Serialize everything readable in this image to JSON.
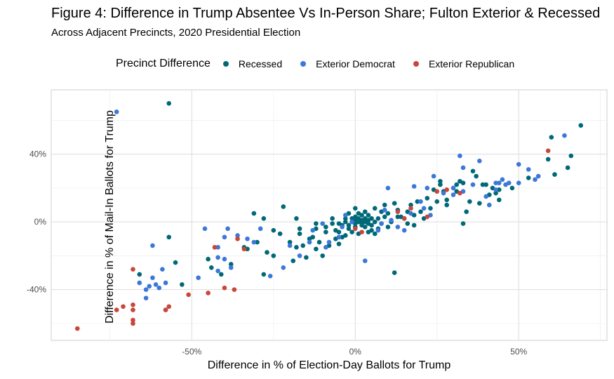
{
  "title": "Figure 4: Difference in Trump Absentee Vs In-Person Share; Fulton Exterior & Recessed",
  "subtitle": "Across Adjacent Precincts, 2020 Presidential Election",
  "legend": {
    "title": "Precinct Difference",
    "items": [
      {
        "label": "Recessed",
        "color": "#006978"
      },
      {
        "label": "Exterior Democrat",
        "color": "#3c78d8"
      },
      {
        "label": "Exterior Republican",
        "color": "#c8473a"
      }
    ]
  },
  "chart_data": {
    "type": "scatter",
    "title": "Figure 4: Difference in Trump Absentee Vs In-Person Share; Fulton Exterior & Recessed",
    "subtitle": "Across Adjacent Precincts, 2020 Presidential Election",
    "xlabel": "Difference in % of Election-Day Ballots for Trump",
    "ylabel": "Difference in % of Mail-In Ballots for Trump",
    "xlim": [
      -93,
      77
    ],
    "ylim": [
      -70,
      78
    ],
    "xticks": [
      -50,
      0,
      50
    ],
    "xtick_labels": [
      "-50%",
      "0%",
      "50%"
    ],
    "yticks": [
      -40,
      0,
      40
    ],
    "ytick_labels": [
      "-40%",
      "0%",
      "40%"
    ],
    "grid": true,
    "legend_position": "top",
    "series": [
      {
        "name": "Recessed",
        "color": "#006978",
        "points": [
          [
            -57,
            70
          ],
          [
            69,
            57
          ],
          [
            60,
            50
          ],
          [
            66,
            39
          ],
          [
            59,
            37
          ],
          [
            65,
            32
          ],
          [
            61,
            28
          ],
          [
            53,
            26
          ],
          [
            48,
            20
          ],
          [
            44,
            19
          ],
          [
            -57,
            -9
          ],
          [
            -66,
            -31
          ],
          [
            -55,
            -24
          ],
          [
            -53,
            -37
          ],
          [
            -45,
            -22
          ],
          [
            -44,
            -27
          ],
          [
            -41,
            -31
          ],
          [
            -33,
            -16
          ],
          [
            -38,
            -25
          ],
          [
            -34,
            -15
          ],
          [
            -31,
            5
          ],
          [
            -28,
            2
          ],
          [
            -25,
            -5
          ],
          [
            -30,
            -12
          ],
          [
            -27,
            -18
          ],
          [
            -28,
            -31
          ],
          [
            -25,
            -20
          ],
          [
            -23,
            -7
          ],
          [
            -22,
            9
          ],
          [
            -20,
            -12
          ],
          [
            -19,
            -23
          ],
          [
            -18,
            -15
          ],
          [
            -17,
            -7
          ],
          [
            -17,
            -4
          ],
          [
            -16,
            -14
          ],
          [
            -15,
            -21
          ],
          [
            -14,
            -10
          ],
          [
            -13,
            -9
          ],
          [
            -12,
            -4
          ],
          [
            -12,
            -1
          ],
          [
            -11,
            -12
          ],
          [
            -10,
            -20
          ],
          [
            -9,
            -3
          ],
          [
            -9,
            -6
          ],
          [
            -8,
            -14
          ],
          [
            -7,
            -1
          ],
          [
            -7,
            2
          ],
          [
            -6,
            -5
          ],
          [
            -6,
            -10
          ],
          [
            -5,
            -13
          ],
          [
            -5,
            -1
          ],
          [
            -4,
            -2
          ],
          [
            -4,
            -9
          ],
          [
            -3,
            -8
          ],
          [
            -3,
            0
          ],
          [
            -3,
            2
          ],
          [
            -2,
            -2
          ],
          [
            -2,
            5
          ],
          [
            -2,
            -4
          ],
          [
            -1,
            0
          ],
          [
            -1,
            2
          ],
          [
            -1,
            -6
          ],
          [
            0,
            8
          ],
          [
            0,
            -1
          ],
          [
            0,
            1
          ],
          [
            0,
            3
          ],
          [
            0,
            -3
          ],
          [
            1,
            -7
          ],
          [
            1,
            2
          ],
          [
            1,
            5
          ],
          [
            1,
            0
          ],
          [
            2,
            -1
          ],
          [
            2,
            1
          ],
          [
            2,
            4
          ],
          [
            2,
            -2
          ],
          [
            3,
            0
          ],
          [
            3,
            2
          ],
          [
            3,
            -3
          ],
          [
            3,
            6
          ],
          [
            4,
            1
          ],
          [
            4,
            -1
          ],
          [
            4,
            4
          ],
          [
            5,
            -2
          ],
          [
            5,
            2
          ],
          [
            5,
            -5
          ],
          [
            6,
            0
          ],
          [
            6,
            8
          ],
          [
            7,
            -4
          ],
          [
            7,
            2
          ],
          [
            8,
            6
          ],
          [
            8,
            -1
          ],
          [
            9,
            10
          ],
          [
            9,
            3
          ],
          [
            10,
            -3
          ],
          [
            10,
            5
          ],
          [
            11,
            0
          ],
          [
            12,
            -30
          ],
          [
            12,
            11
          ],
          [
            13,
            7
          ],
          [
            13,
            3
          ],
          [
            14,
            3
          ],
          [
            15,
            2
          ],
          [
            16,
            6
          ],
          [
            17,
            10
          ],
          [
            18,
            4
          ],
          [
            18,
            -2
          ],
          [
            19,
            12
          ],
          [
            20,
            6
          ],
          [
            21,
            2
          ],
          [
            22,
            14
          ],
          [
            23,
            8
          ],
          [
            24,
            19
          ],
          [
            25,
            12
          ],
          [
            26,
            22
          ],
          [
            26,
            24
          ],
          [
            27,
            18
          ],
          [
            28,
            13
          ],
          [
            28,
            10
          ],
          [
            30,
            20
          ],
          [
            31,
            18
          ],
          [
            31,
            22
          ],
          [
            32,
            24
          ],
          [
            33,
            23
          ],
          [
            33,
            -1
          ],
          [
            34,
            6
          ],
          [
            35,
            12
          ],
          [
            36,
            30
          ],
          [
            37,
            27
          ],
          [
            38,
            11
          ],
          [
            39,
            22
          ],
          [
            40,
            22
          ],
          [
            41,
            16
          ],
          [
            42,
            20
          ],
          [
            43,
            17
          ],
          [
            44,
            13
          ],
          [
            -5,
            -6
          ],
          [
            4,
            -6
          ],
          [
            -12,
            -16
          ],
          [
            -18,
            2
          ],
          [
            16,
            -1
          ],
          [
            6,
            -7
          ]
        ]
      },
      {
        "name": "Exterior Democrat",
        "color": "#3c78d8",
        "points": [
          [
            -73,
            65
          ],
          [
            64,
            51
          ],
          [
            50,
            34
          ],
          [
            53,
            31
          ],
          [
            56,
            27
          ],
          [
            55,
            25
          ],
          [
            50,
            23
          ],
          [
            44,
            23
          ],
          [
            46,
            22
          ],
          [
            43,
            23
          ],
          [
            32,
            39
          ],
          [
            33,
            32
          ],
          [
            38,
            36
          ],
          [
            36,
            22
          ],
          [
            43,
            19
          ],
          [
            40,
            15
          ],
          [
            41,
            10
          ],
          [
            33,
            18
          ],
          [
            30,
            16
          ],
          [
            27,
            17
          ],
          [
            30,
            20
          ],
          [
            22,
            20
          ],
          [
            21,
            8
          ],
          [
            23,
            4
          ],
          [
            24,
            27
          ],
          [
            18,
            21
          ],
          [
            20,
            12
          ],
          [
            17,
            5
          ],
          [
            15,
            -5
          ],
          [
            13,
            -3
          ],
          [
            11,
            1
          ],
          [
            10,
            20
          ],
          [
            9,
            7
          ],
          [
            8,
            -1
          ],
          [
            7,
            -5
          ],
          [
            3,
            -23
          ],
          [
            -1,
            0
          ],
          [
            -3,
            4
          ],
          [
            -4,
            -3
          ],
          [
            -5,
            -9
          ],
          [
            -8,
            -12
          ],
          [
            -9,
            -15
          ],
          [
            -10,
            -1
          ],
          [
            -13,
            -5
          ],
          [
            -14,
            -12
          ],
          [
            -17,
            -20
          ],
          [
            -20,
            -14
          ],
          [
            -22,
            -27
          ],
          [
            -26,
            -32
          ],
          [
            -29,
            -4
          ],
          [
            -31,
            -12
          ],
          [
            -33,
            -10
          ],
          [
            -36,
            -8
          ],
          [
            -39,
            -4
          ],
          [
            -40,
            -9
          ],
          [
            -42,
            -15
          ],
          [
            -42,
            -21
          ],
          [
            -42,
            -29
          ],
          [
            -40,
            -22
          ],
          [
            -38,
            -27
          ],
          [
            -46,
            -4
          ],
          [
            -48,
            -33
          ],
          [
            -59,
            -28
          ],
          [
            -58,
            -36
          ],
          [
            -62,
            -33
          ],
          [
            -63,
            -38
          ],
          [
            -64,
            -40
          ],
          [
            -66,
            -36
          ],
          [
            -64,
            -45
          ],
          [
            -61,
            -37
          ],
          [
            -60,
            -39
          ],
          [
            -58,
            -52
          ],
          [
            -62,
            -14
          ],
          [
            45,
            25
          ],
          [
            47,
            23
          ]
        ]
      },
      {
        "name": "Exterior Republican",
        "color": "#c8473a",
        "points": [
          [
            -85,
            -63
          ],
          [
            -73,
            -52
          ],
          [
            -71,
            -50
          ],
          [
            -68,
            -49
          ],
          [
            -68,
            -52
          ],
          [
            -68,
            -58
          ],
          [
            -68,
            -60
          ],
          [
            -68,
            -28
          ],
          [
            -58,
            -52
          ],
          [
            -57,
            -50
          ],
          [
            -51,
            -43
          ],
          [
            -45,
            -42
          ],
          [
            -43,
            -15
          ],
          [
            -40,
            -39
          ],
          [
            -37,
            -40
          ],
          [
            -36,
            -10
          ],
          [
            -34,
            -16
          ],
          [
            0,
            -4
          ],
          [
            2,
            -6
          ],
          [
            13,
            6
          ],
          [
            15,
            2
          ],
          [
            17,
            8
          ],
          [
            22,
            3
          ],
          [
            25,
            18
          ],
          [
            28,
            19
          ],
          [
            32,
            17
          ],
          [
            59,
            42
          ]
        ]
      }
    ]
  }
}
